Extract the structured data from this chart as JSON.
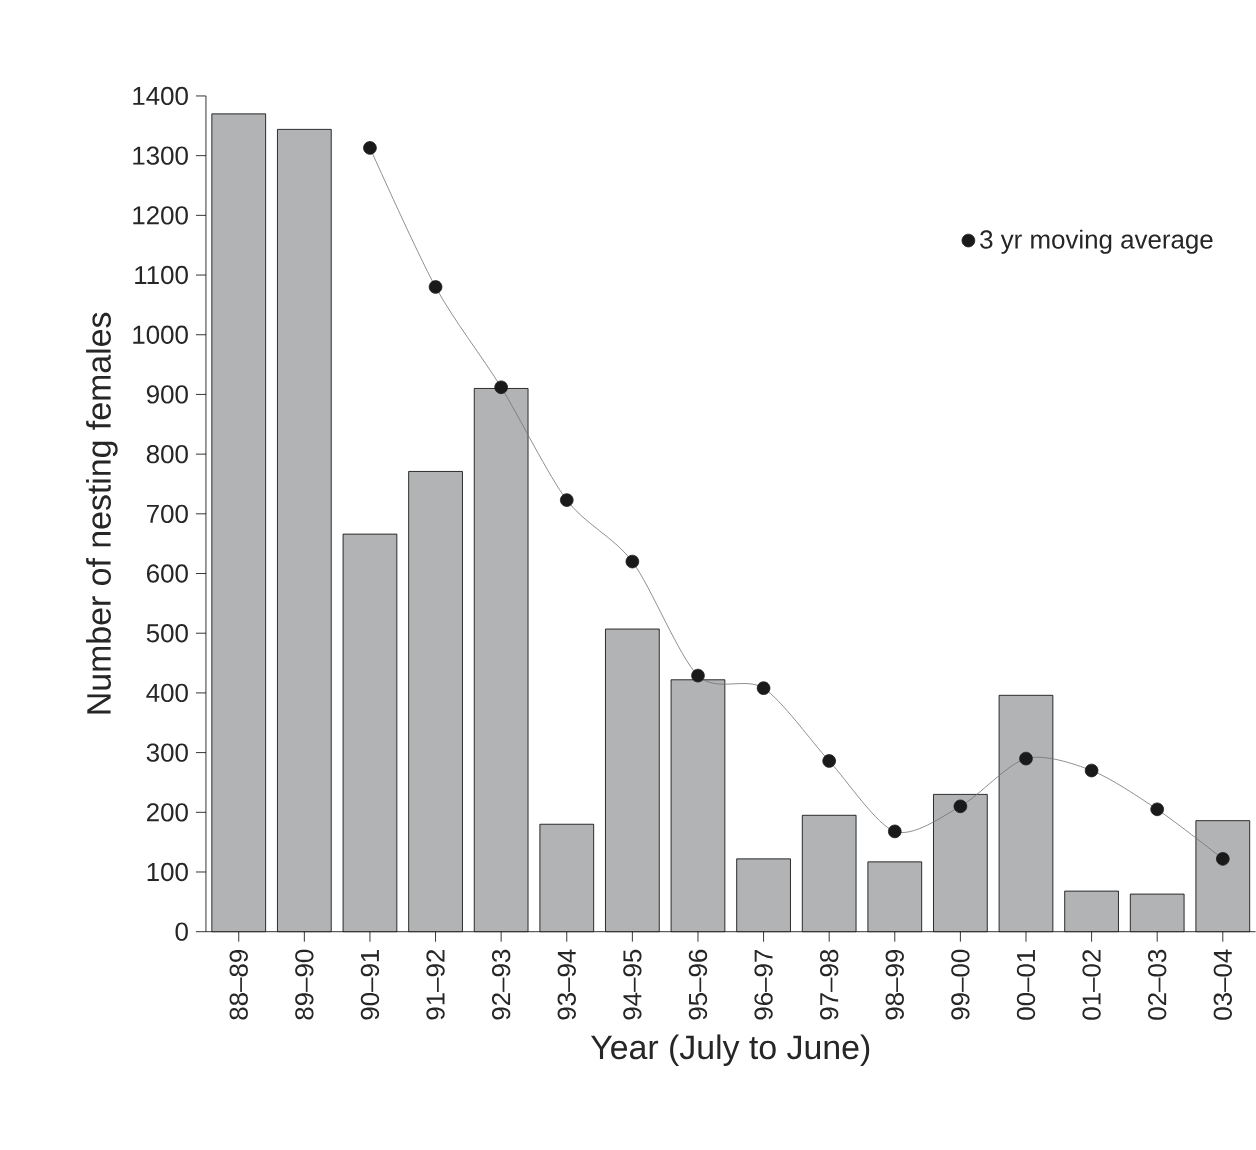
{
  "chart_data": {
    "type": "bar",
    "xlabel": "Year (July to June)",
    "ylabel": "Number of nesting females",
    "categories": [
      "88–89",
      "89–90",
      "90–91",
      "91–92",
      "92–93",
      "93–94",
      "94–95",
      "95–96",
      "96–97",
      "97–98",
      "98–99",
      "99–00",
      "00–01",
      "01–02",
      "02–03",
      "03–04"
    ],
    "series": [
      {
        "color": "#b2b3b5",
        "values": [
          1370,
          1344,
          666,
          771,
          910,
          180,
          507,
          422,
          122,
          195,
          117,
          230,
          396,
          68,
          63,
          186
        ]
      },
      {
        "type": "line",
        "name": "3 yr moving average",
        "color": "#1a1a1a",
        "marker": "circle",
        "values": [
          null,
          null,
          1313,
          1080,
          912,
          723,
          620,
          429,
          408,
          286,
          168,
          210,
          290,
          270,
          205,
          122
        ]
      }
    ],
    "ylim": [
      0,
      1400
    ],
    "yticks": [
      0,
      100,
      200,
      300,
      400,
      500,
      600,
      700,
      800,
      900,
      1000,
      1100,
      1200,
      1300,
      1400
    ],
    "grid": false,
    "legend": "top right"
  }
}
